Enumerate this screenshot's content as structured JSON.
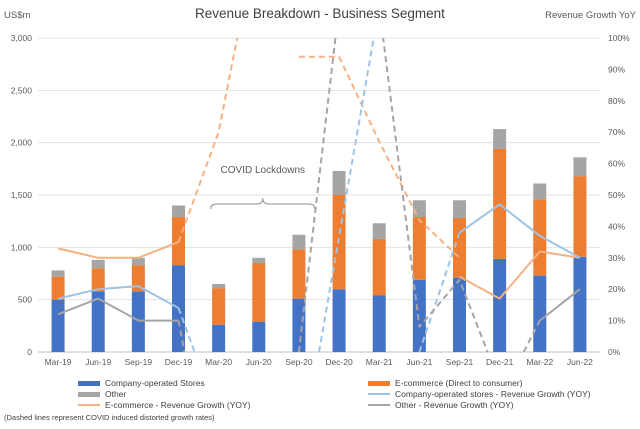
{
  "chart_data": {
    "type": "bar",
    "title": "Revenue Breakdown - Business Segment",
    "ylabel_left": "US$m",
    "ylabel_right": "Revenue Growth YoY",
    "categories": [
      "Mar-19",
      "Jun-19",
      "Sep-19",
      "Dec-19",
      "Mar-20",
      "Jun-20",
      "Sep-20",
      "Dec-20",
      "Mar-21",
      "Jun-21",
      "Sep-21",
      "Dec-21",
      "Mar-22",
      "Jun-22"
    ],
    "left_axis": {
      "min": 0,
      "max": 3000,
      "step": 500,
      "tick_labels": [
        "0",
        "500",
        "1,000",
        "1,500",
        "2,000",
        "2,500",
        "3,000"
      ]
    },
    "right_axis": {
      "min": 0,
      "max": 100,
      "step": 10,
      "tick_labels": [
        "0%",
        "10%",
        "20%",
        "30%",
        "40%",
        "50%",
        "60%",
        "70%",
        "80%",
        "90%",
        "100%"
      ]
    },
    "grid": true,
    "stacked_series": [
      {
        "name": "Company-operated Stores",
        "color": "#4472C4",
        "values": [
          500,
          580,
          580,
          830,
          260,
          290,
          510,
          600,
          540,
          690,
          710,
          890,
          730,
          910
        ]
      },
      {
        "name": "E-commerce (Direct to consumer)",
        "color": "#ED7D31",
        "values": [
          220,
          220,
          250,
          460,
          350,
          560,
          470,
          900,
          540,
          600,
          570,
          1050,
          730,
          770
        ]
      },
      {
        "name": "Other",
        "color": "#A5A5A5",
        "values": [
          60,
          80,
          70,
          110,
          40,
          50,
          140,
          230,
          150,
          160,
          170,
          190,
          150,
          180
        ]
      }
    ],
    "line_series": [
      {
        "name": "E-commerce - Revenue Growth (YOY)",
        "color": "#F4B183",
        "segments": [
          {
            "dashed": false,
            "points": [
              [
                0,
                33
              ],
              [
                1,
                30
              ],
              [
                2,
                30
              ],
              [
                3,
                35
              ]
            ]
          },
          {
            "dashed": true,
            "points": [
              [
                3,
                35
              ],
              [
                4,
                70
              ],
              [
                5,
                135
              ]
            ]
          },
          {
            "dashed": true,
            "points": [
              [
                6,
                94
              ],
              [
                7,
                94
              ],
              [
                8,
                67
              ],
              [
                9,
                42
              ],
              [
                10,
                30
              ]
            ]
          },
          {
            "dashed": false,
            "points": [
              [
                10,
                24
              ],
              [
                11,
                17
              ],
              [
                12,
                32
              ],
              [
                13,
                30
              ]
            ]
          }
        ]
      },
      {
        "name": "Company-operated stores - Revenue Growth (YOY)",
        "color": "#9DC3E6",
        "segments": [
          {
            "dashed": false,
            "points": [
              [
                0,
                17
              ],
              [
                1,
                20
              ],
              [
                2,
                21
              ],
              [
                3,
                14
              ]
            ]
          },
          {
            "dashed": true,
            "points": [
              [
                3,
                14
              ],
              [
                3.4,
                0
              ]
            ]
          },
          {
            "dashed": true,
            "points": [
              [
                6.5,
                0
              ],
              [
                8,
                110
              ]
            ]
          },
          {
            "dashed": true,
            "points": [
              [
                9,
                0
              ],
              [
                10,
                38
              ]
            ]
          },
          {
            "dashed": false,
            "points": [
              [
                10,
                38
              ],
              [
                11,
                47
              ],
              [
                12,
                37
              ],
              [
                13,
                30
              ]
            ]
          }
        ]
      },
      {
        "name": "Other - Revenue Growth (YOY)",
        "color": "#A5A5A5",
        "segments": [
          {
            "dashed": false,
            "points": [
              [
                0,
                12
              ],
              [
                1,
                17
              ],
              [
                2,
                10
              ],
              [
                3,
                10
              ]
            ]
          },
          {
            "dashed": true,
            "points": [
              [
                3,
                10
              ],
              [
                3.15,
                0
              ]
            ]
          },
          {
            "dashed": true,
            "points": [
              [
                6,
                0
              ],
              [
                7,
                110
              ]
            ]
          },
          {
            "dashed": true,
            "points": [
              [
                8,
                110
              ],
              [
                9,
                8
              ],
              [
                10,
                23
              ],
              [
                10.7,
                0
              ]
            ]
          },
          {
            "dashed": true,
            "points": [
              [
                11.6,
                0
              ],
              [
                12,
                10
              ]
            ]
          },
          {
            "dashed": false,
            "points": [
              [
                12,
                10
              ],
              [
                13,
                20
              ]
            ]
          }
        ]
      }
    ],
    "annotation": {
      "text": "COVID Lockdowns",
      "from": 4,
      "to": 6
    }
  },
  "legend": [
    {
      "label": "Company-operated Stores",
      "kind": "box",
      "color": "#4472C4"
    },
    {
      "label": "E-commerce (Direct to consumer)",
      "kind": "box",
      "color": "#ED7D31"
    },
    {
      "label": "Other",
      "kind": "box",
      "color": "#A5A5A5"
    },
    {
      "label": "Company-operated stores - Revenue Growth (YOY)",
      "kind": "line",
      "color": "#9DC3E6"
    },
    {
      "label": "E-commerce - Revenue Growth (YOY)",
      "kind": "line",
      "color": "#F4B183"
    },
    {
      "label": "Other - Revenue Growth (YOY)",
      "kind": "line",
      "color": "#A5A5A5"
    }
  ],
  "footnote": "(Dashed lines represent COVID induced distorted growth rates)"
}
